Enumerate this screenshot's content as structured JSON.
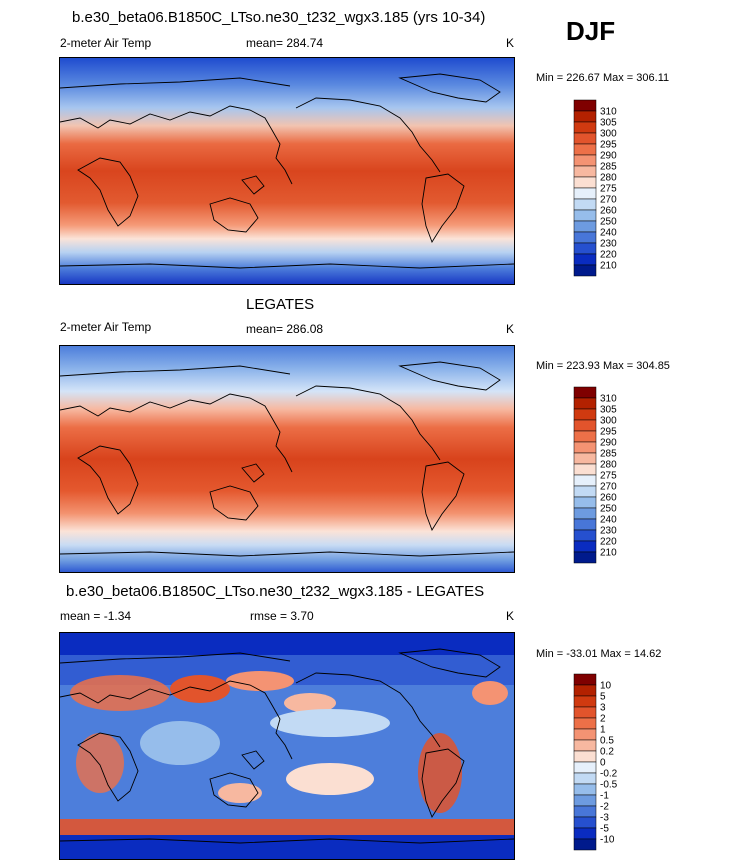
{
  "season": "DJF",
  "panels": [
    {
      "title": "b.e30_beta06.B1850C_LTso.ne30_t232_wgx3.185 (yrs 10-34)",
      "left_label": "2-meter Air Temp",
      "center_label": "mean= 284.74",
      "units": "K",
      "minmax": "Min = 226.67 Max = 306.11",
      "colorbar_labels": [
        "310",
        "305",
        "300",
        "295",
        "290",
        "285",
        "280",
        "275",
        "270",
        "260",
        "250",
        "240",
        "230",
        "220",
        "210"
      ],
      "colors": [
        "#7f0000",
        "#b32100",
        "#d03a10",
        "#e2542c",
        "#ed7048",
        "#f49373",
        "#f7b8a0",
        "#fbdfd2",
        "#e6f0fb",
        "#c2daf4",
        "#96bdeb",
        "#6d9be0",
        "#4876d8",
        "#2650cf",
        "#0a2cc0",
        "#001a8c"
      ]
    },
    {
      "title": "LEGATES",
      "left_label": "2-meter Air Temp",
      "center_label": "mean= 286.08",
      "units": "K",
      "minmax": "Min = 223.93 Max = 304.85",
      "colorbar_labels": [
        "310",
        "305",
        "300",
        "295",
        "290",
        "285",
        "280",
        "275",
        "270",
        "260",
        "250",
        "240",
        "230",
        "220",
        "210"
      ],
      "colors": [
        "#7f0000",
        "#b32100",
        "#d03a10",
        "#e2542c",
        "#ed7048",
        "#f49373",
        "#f7b8a0",
        "#fbdfd2",
        "#e6f0fb",
        "#c2daf4",
        "#96bdeb",
        "#6d9be0",
        "#4876d8",
        "#2650cf",
        "#0a2cc0",
        "#001a8c"
      ]
    },
    {
      "title": "b.e30_beta06.B1850C_LTso.ne30_t232_wgx3.185 - LEGATES",
      "left_label": "mean =  -1.34",
      "center_label": "rmse =   3.70",
      "units": "K",
      "minmax": "Min = -33.01 Max =  14.62",
      "colorbar_labels": [
        "10",
        "5",
        "3",
        "2",
        "1",
        "0.5",
        "0.2",
        "0",
        "-0.2",
        "-0.5",
        "-1",
        "-2",
        "-3",
        "-5",
        "-10"
      ],
      "colors": [
        "#7f0000",
        "#b32100",
        "#d03a10",
        "#e2542c",
        "#ed7048",
        "#f49373",
        "#f7b8a0",
        "#fbdfd2",
        "#e6f0fb",
        "#c2daf4",
        "#96bdeb",
        "#6d9be0",
        "#4876d8",
        "#2650cf",
        "#0a2cc0",
        "#001a8c"
      ]
    }
  ]
}
